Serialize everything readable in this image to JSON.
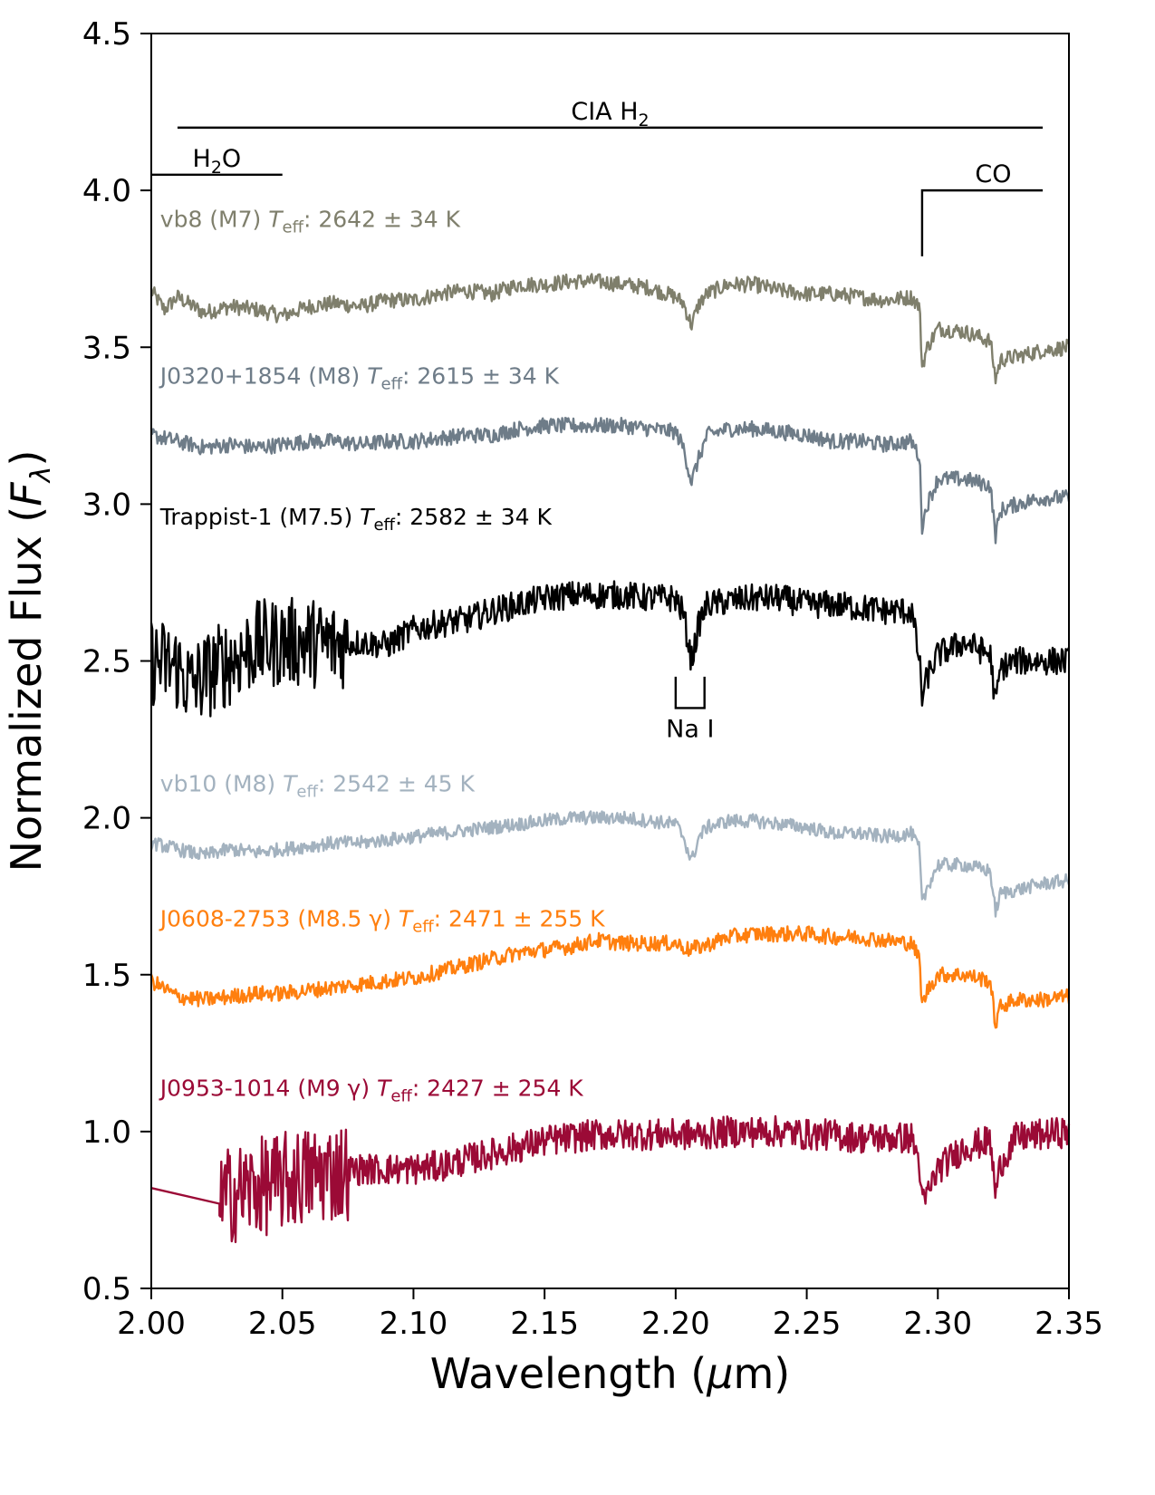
{
  "chart_data": {
    "type": "line",
    "title": "",
    "xlabel": "Wavelength (μm)",
    "ylabel": "Normalized Flux (F_λ)",
    "xlim": [
      2.0,
      2.35
    ],
    "ylim": [
      0.5,
      4.5
    ],
    "xticks": [
      "2.00",
      "2.05",
      "2.10",
      "2.15",
      "2.20",
      "2.25",
      "2.30",
      "2.35"
    ],
    "yticks": [
      "0.5",
      "1.0",
      "1.5",
      "2.0",
      "2.5",
      "3.0",
      "3.5",
      "4.0",
      "4.5"
    ],
    "grid": false,
    "legend": "none",
    "features": [
      {
        "name": "CIA H2",
        "label": "CIA H",
        "sub": "2",
        "suffix": "",
        "x_start": 2.01,
        "x_end": 2.34,
        "y": 4.2
      },
      {
        "name": "H2O",
        "label": "H",
        "sub": "2",
        "suffix": "O",
        "x_start": 2.0,
        "x_end": 2.05,
        "y": 4.05
      },
      {
        "name": "CO",
        "label": "CO",
        "sub": "",
        "suffix": "",
        "x_start": 2.294,
        "x_end": 2.34,
        "y": 4.0,
        "y_drop": 3.79
      },
      {
        "name": "Na I",
        "label": "Na I",
        "sub": "",
        "suffix": "",
        "x_start": 2.2,
        "x_end": 2.211,
        "y": 2.35,
        "y_top": 2.45
      }
    ],
    "series": [
      {
        "name": "vb8 (M7) T_eff : 2642 ± 34 K",
        "label_prefix": "vb8 (M7)",
        "label_suffix": ": 2642 ± 34 K",
        "color": "#7f7f6c",
        "x": [
          2.0,
          2.005,
          2.01,
          2.02,
          2.03,
          2.04,
          2.05,
          2.06,
          2.07,
          2.08,
          2.09,
          2.1,
          2.11,
          2.12,
          2.13,
          2.14,
          2.15,
          2.16,
          2.17,
          2.18,
          2.19,
          2.2,
          2.203,
          2.206,
          2.209,
          2.212,
          2.22,
          2.23,
          2.24,
          2.25,
          2.26,
          2.27,
          2.28,
          2.29,
          2.293,
          2.294,
          2.296,
          2.3,
          2.31,
          2.32,
          2.322,
          2.324,
          2.33,
          2.34,
          2.35
        ],
        "y": [
          3.68,
          3.62,
          3.66,
          3.61,
          3.63,
          3.62,
          3.6,
          3.63,
          3.64,
          3.63,
          3.65,
          3.65,
          3.67,
          3.68,
          3.67,
          3.7,
          3.7,
          3.71,
          3.71,
          3.7,
          3.69,
          3.66,
          3.64,
          3.57,
          3.64,
          3.67,
          3.7,
          3.7,
          3.68,
          3.67,
          3.67,
          3.66,
          3.65,
          3.66,
          3.63,
          3.44,
          3.5,
          3.56,
          3.55,
          3.52,
          3.4,
          3.46,
          3.47,
          3.49,
          3.5
        ],
        "noise": 0.025,
        "label_x": 2.002,
        "label_y": 3.91
      },
      {
        "name": "J0320+1854 (M8) T_eff : 2615 ± 34 K",
        "label_prefix": "J0320+1854 (M8)",
        "label_suffix": ": 2615 ± 34 K",
        "color": "#6e7c88",
        "x": [
          2.0,
          2.01,
          2.02,
          2.03,
          2.04,
          2.05,
          2.06,
          2.07,
          2.08,
          2.09,
          2.1,
          2.11,
          2.12,
          2.13,
          2.14,
          2.15,
          2.16,
          2.17,
          2.18,
          2.19,
          2.2,
          2.203,
          2.206,
          2.209,
          2.212,
          2.22,
          2.23,
          2.24,
          2.25,
          2.26,
          2.27,
          2.28,
          2.29,
          2.293,
          2.294,
          2.296,
          2.3,
          2.31,
          2.32,
          2.322,
          2.324,
          2.33,
          2.34,
          2.35
        ],
        "y": [
          3.22,
          3.2,
          3.18,
          3.19,
          3.18,
          3.19,
          3.2,
          3.2,
          3.19,
          3.2,
          3.2,
          3.21,
          3.22,
          3.22,
          3.24,
          3.25,
          3.25,
          3.25,
          3.25,
          3.24,
          3.23,
          3.18,
          3.07,
          3.15,
          3.22,
          3.24,
          3.24,
          3.23,
          3.22,
          3.2,
          3.2,
          3.19,
          3.2,
          3.15,
          2.93,
          3.0,
          3.08,
          3.08,
          3.06,
          2.9,
          2.98,
          3.0,
          3.02,
          3.02
        ],
        "noise": 0.025,
        "label_x": 2.002,
        "label_y": 3.41
      },
      {
        "name": "Trappist-1 (M7.5) T_eff : 2582 ± 34 K",
        "label_prefix": "Trappist-1 (M7.5)",
        "label_suffix": ": 2582 ± 34 K",
        "color": "#000000",
        "x": [
          2.0,
          2.01,
          2.015,
          2.02,
          2.03,
          2.04,
          2.05,
          2.06,
          2.07,
          2.08,
          2.09,
          2.1,
          2.11,
          2.12,
          2.13,
          2.14,
          2.15,
          2.16,
          2.17,
          2.18,
          2.19,
          2.2,
          2.203,
          2.206,
          2.209,
          2.212,
          2.22,
          2.23,
          2.24,
          2.25,
          2.26,
          2.27,
          2.28,
          2.29,
          2.293,
          2.294,
          2.296,
          2.3,
          2.31,
          2.32,
          2.322,
          2.324,
          2.33,
          2.34,
          2.35
        ],
        "y": [
          2.5,
          2.48,
          2.42,
          2.45,
          2.5,
          2.55,
          2.56,
          2.56,
          2.55,
          2.56,
          2.55,
          2.6,
          2.62,
          2.63,
          2.66,
          2.68,
          2.7,
          2.71,
          2.71,
          2.71,
          2.7,
          2.7,
          2.65,
          2.5,
          2.62,
          2.68,
          2.69,
          2.7,
          2.7,
          2.68,
          2.68,
          2.67,
          2.66,
          2.66,
          2.5,
          2.38,
          2.45,
          2.52,
          2.56,
          2.52,
          2.36,
          2.48,
          2.5,
          2.5,
          2.5
        ],
        "noise": 0.045,
        "label_x": 2.002,
        "label_y": 2.96
      },
      {
        "name": "vb10 (M8) T_eff : 2542 ± 45 K",
        "label_prefix": "vb10 (M8)",
        "label_suffix": ": 2542 ± 45 K",
        "color": "#a3b2bf",
        "x": [
          2.0,
          2.01,
          2.02,
          2.03,
          2.04,
          2.05,
          2.06,
          2.07,
          2.08,
          2.09,
          2.1,
          2.11,
          2.12,
          2.13,
          2.14,
          2.15,
          2.16,
          2.17,
          2.18,
          2.19,
          2.2,
          2.203,
          2.206,
          2.209,
          2.212,
          2.22,
          2.23,
          2.24,
          2.25,
          2.26,
          2.27,
          2.28,
          2.29,
          2.293,
          2.294,
          2.296,
          2.3,
          2.31,
          2.32,
          2.322,
          2.324,
          2.33,
          2.34,
          2.35
        ],
        "y": [
          1.92,
          1.9,
          1.88,
          1.9,
          1.89,
          1.9,
          1.91,
          1.92,
          1.92,
          1.93,
          1.94,
          1.95,
          1.96,
          1.97,
          1.98,
          1.99,
          2.0,
          2.0,
          2.0,
          1.99,
          1.98,
          1.94,
          1.86,
          1.94,
          1.97,
          1.99,
          1.99,
          1.98,
          1.97,
          1.95,
          1.95,
          1.94,
          1.95,
          1.9,
          1.72,
          1.78,
          1.85,
          1.85,
          1.83,
          1.7,
          1.76,
          1.77,
          1.79,
          1.8
        ],
        "noise": 0.022,
        "label_x": 2.002,
        "label_y": 2.11
      },
      {
        "name": "J0608-2753 (M8.5 γ) T_eff : 2471 ± 255 K",
        "label_prefix": "J0608-2753 (M8.5 γ)",
        "label_suffix": ": 2471 ± 255 K",
        "color": "#ff7f0e",
        "x": [
          2.0,
          2.01,
          2.02,
          2.03,
          2.04,
          2.05,
          2.06,
          2.07,
          2.08,
          2.09,
          2.1,
          2.11,
          2.12,
          2.13,
          2.14,
          2.15,
          2.16,
          2.17,
          2.18,
          2.19,
          2.2,
          2.205,
          2.21,
          2.22,
          2.23,
          2.24,
          2.25,
          2.26,
          2.27,
          2.28,
          2.29,
          2.293,
          2.294,
          2.296,
          2.3,
          2.31,
          2.32,
          2.322,
          2.324,
          2.33,
          2.34,
          2.35
        ],
        "y": [
          1.48,
          1.43,
          1.42,
          1.43,
          1.44,
          1.44,
          1.45,
          1.46,
          1.47,
          1.48,
          1.49,
          1.51,
          1.53,
          1.55,
          1.57,
          1.58,
          1.59,
          1.61,
          1.6,
          1.6,
          1.6,
          1.58,
          1.59,
          1.62,
          1.63,
          1.63,
          1.63,
          1.62,
          1.62,
          1.61,
          1.6,
          1.55,
          1.4,
          1.45,
          1.5,
          1.5,
          1.48,
          1.34,
          1.4,
          1.42,
          1.42,
          1.43
        ],
        "noise": 0.025,
        "label_x": 2.002,
        "label_y": 1.68
      },
      {
        "name": "J0953-1014 (M9 γ) T_eff : 2427 ± 254 K",
        "label_prefix": "J0953-1014 (M9 γ)",
        "label_suffix": ": 2427 ± 254 K",
        "color": "#9b0a36",
        "x": [
          2.0,
          2.026,
          2.03,
          2.04,
          2.05,
          2.06,
          2.07,
          2.08,
          2.09,
          2.1,
          2.11,
          2.12,
          2.13,
          2.14,
          2.15,
          2.16,
          2.17,
          2.18,
          2.19,
          2.2,
          2.21,
          2.22,
          2.23,
          2.24,
          2.25,
          2.26,
          2.27,
          2.28,
          2.29,
          2.293,
          2.294,
          2.296,
          2.3,
          2.31,
          2.32,
          2.322,
          2.324,
          2.33,
          2.34,
          2.35
        ],
        "y": [
          0.82,
          0.77,
          0.8,
          0.82,
          0.84,
          0.86,
          0.87,
          0.88,
          0.88,
          0.88,
          0.89,
          0.91,
          0.93,
          0.95,
          0.97,
          0.98,
          0.99,
          0.99,
          0.99,
          0.99,
          0.99,
          1.0,
          1.0,
          1.0,
          0.99,
          0.99,
          0.98,
          0.98,
          0.98,
          0.9,
          0.76,
          0.8,
          0.88,
          0.95,
          0.97,
          0.8,
          0.9,
          0.98,
          0.99,
          1.0
        ],
        "noise": 0.05,
        "label_x": 2.002,
        "label_y": 1.14
      }
    ]
  }
}
